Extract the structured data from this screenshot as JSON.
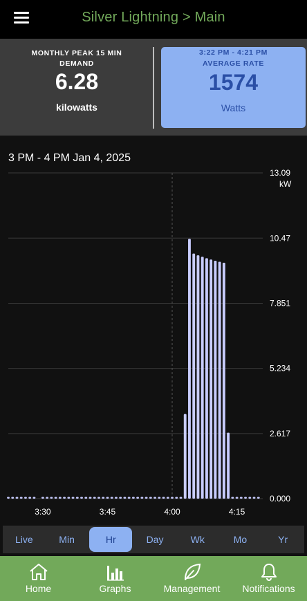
{
  "header": {
    "title": "Silver Lightning > Main",
    "menu_icon": "hamburger-icon"
  },
  "stats": {
    "peak": {
      "label": "MONTHLY PEAK 15 MIN DEMAND",
      "value": "6.28",
      "unit": "kilowatts"
    },
    "average": {
      "range": "3:22 PM - 4:21 PM",
      "label": "AVERAGE RATE",
      "value": "1574",
      "unit": "Watts"
    }
  },
  "chart_data": {
    "type": "bar",
    "title": "3 PM - 4 PM Jan 4, 2025",
    "y_unit": "kW",
    "ylim": [
      0,
      13.09
    ],
    "y_ticks": [
      0,
      2.617,
      5.234,
      7.851,
      10.47,
      13.09
    ],
    "y_tick_labels": [
      "0.000",
      "2.617",
      "5.234",
      "7.851",
      "10.47",
      "13.09"
    ],
    "x_ticks": [
      {
        "minute": 30,
        "label": "3:30"
      },
      {
        "minute": 45,
        "label": "3:45"
      },
      {
        "minute": 60,
        "label": "4:00"
      },
      {
        "minute": 75,
        "label": "4:15"
      }
    ],
    "xlim": [
      22,
      81
    ],
    "marker_minute": 60,
    "grid": true,
    "bar_color": "#c8ccff",
    "points": [
      {
        "x": 22,
        "y": 0.05
      },
      {
        "x": 23,
        "y": 0.05
      },
      {
        "x": 24,
        "y": 0.05
      },
      {
        "x": 25,
        "y": 0.05
      },
      {
        "x": 26,
        "y": 0.05
      },
      {
        "x": 27,
        "y": 0.05
      },
      {
        "x": 28,
        "y": 0.05
      },
      {
        "x": 30,
        "y": 0.05
      },
      {
        "x": 31,
        "y": 0.05
      },
      {
        "x": 32,
        "y": 0.05
      },
      {
        "x": 33,
        "y": 0.05
      },
      {
        "x": 34,
        "y": 0.05
      },
      {
        "x": 35,
        "y": 0.05
      },
      {
        "x": 36,
        "y": 0.05
      },
      {
        "x": 37,
        "y": 0.05
      },
      {
        "x": 38,
        "y": 0.05
      },
      {
        "x": 39,
        "y": 0.05
      },
      {
        "x": 40,
        "y": 0.05
      },
      {
        "x": 41,
        "y": 0.05
      },
      {
        "x": 42,
        "y": 0.05
      },
      {
        "x": 43,
        "y": 0.05
      },
      {
        "x": 44,
        "y": 0.05
      },
      {
        "x": 45,
        "y": 0.05
      },
      {
        "x": 46,
        "y": 0.05
      },
      {
        "x": 47,
        "y": 0.05
      },
      {
        "x": 48,
        "y": 0.05
      },
      {
        "x": 49,
        "y": 0.05
      },
      {
        "x": 50,
        "y": 0.05
      },
      {
        "x": 51,
        "y": 0.05
      },
      {
        "x": 52,
        "y": 0.05
      },
      {
        "x": 53,
        "y": 0.05
      },
      {
        "x": 54,
        "y": 0.05
      },
      {
        "x": 55,
        "y": 0.05
      },
      {
        "x": 56,
        "y": 0.05
      },
      {
        "x": 57,
        "y": 0.05
      },
      {
        "x": 58,
        "y": 0.05
      },
      {
        "x": 59,
        "y": 0.05
      },
      {
        "x": 60,
        "y": 0.05
      },
      {
        "x": 61,
        "y": 0.05
      },
      {
        "x": 62,
        "y": 0.05
      },
      {
        "x": 63,
        "y": 3.4
      },
      {
        "x": 64,
        "y": 10.44
      },
      {
        "x": 65,
        "y": 9.85
      },
      {
        "x": 66,
        "y": 9.78
      },
      {
        "x": 67,
        "y": 9.72
      },
      {
        "x": 68,
        "y": 9.66
      },
      {
        "x": 69,
        "y": 9.61
      },
      {
        "x": 70,
        "y": 9.56
      },
      {
        "x": 71,
        "y": 9.52
      },
      {
        "x": 72,
        "y": 9.48
      },
      {
        "x": 73,
        "y": 2.65
      },
      {
        "x": 74,
        "y": 0.05
      },
      {
        "x": 75,
        "y": 0.05
      },
      {
        "x": 76,
        "y": 0.05
      },
      {
        "x": 77,
        "y": 0.05
      },
      {
        "x": 78,
        "y": 0.05
      },
      {
        "x": 79,
        "y": 0.05
      },
      {
        "x": 80,
        "y": 0.05
      }
    ]
  },
  "range_selector": {
    "options": [
      "Live",
      "Min",
      "Hr",
      "Day",
      "Wk",
      "Mo",
      "Yr"
    ],
    "selected": "Hr"
  },
  "nav": {
    "items": [
      {
        "label": "Home",
        "icon": "home-icon"
      },
      {
        "label": "Graphs",
        "icon": "bar-chart-icon"
      },
      {
        "label": "Management",
        "icon": "leaf-icon"
      },
      {
        "label": "Notifications",
        "icon": "bell-icon"
      }
    ]
  },
  "colors": {
    "accent_green": "#72a95a",
    "accent_blue": "#8db1f2",
    "dark_blue": "#2a4fa6"
  }
}
